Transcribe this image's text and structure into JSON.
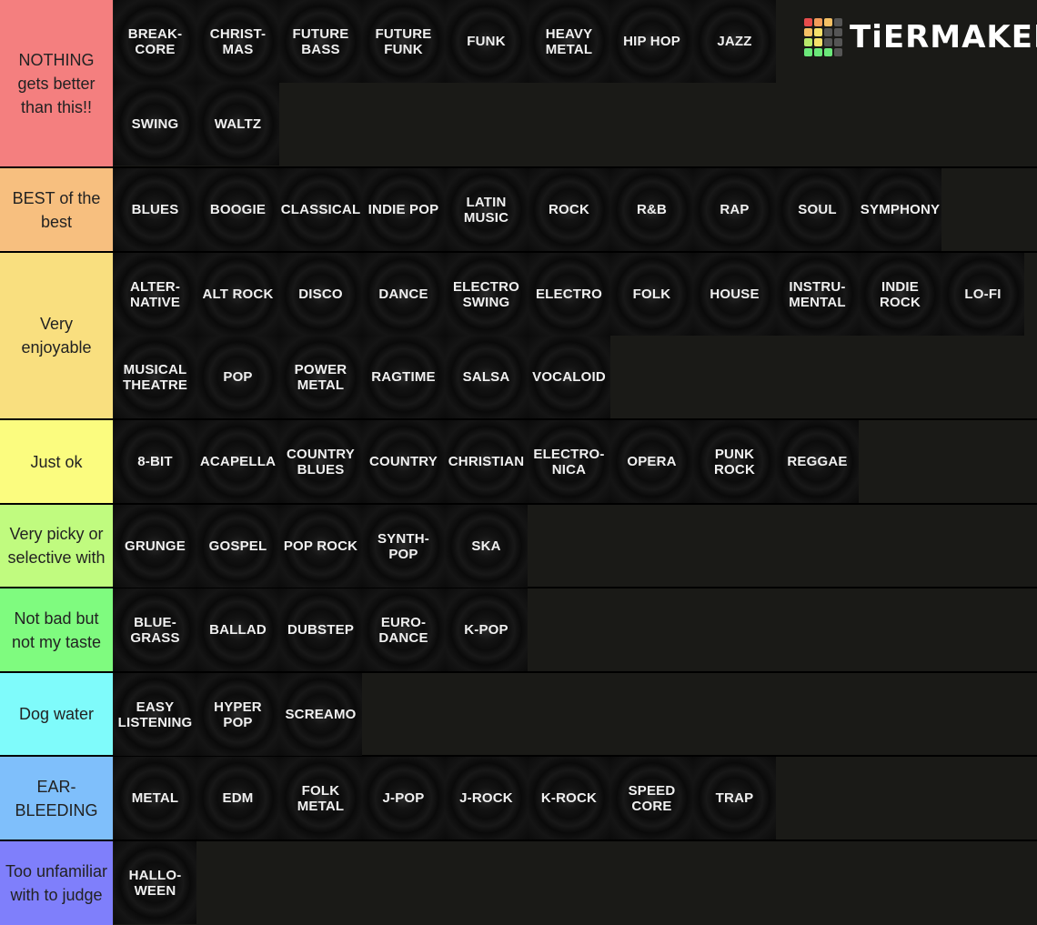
{
  "logo": {
    "text": "TiERMAKER",
    "cells": [
      "#e74c4c",
      "#f39c5a",
      "#f5c065",
      "#555555",
      "#f5c065",
      "#f5e06b",
      "#555555",
      "#555555",
      "#b8e86b",
      "#f5e06b",
      "#555555",
      "#555555",
      "#6be87a",
      "#6be87a",
      "#6be87a",
      "#555555"
    ]
  },
  "tiers": [
    {
      "label": "NOTHING gets better than this!!",
      "color": "#f47f7f",
      "items": [
        "BREAK-\nCORE",
        "CHRIST-\nMAS",
        "FUTURE\nBASS",
        "FUTURE\nFUNK",
        "FUNK",
        "HEAVY\nMETAL",
        "HIP HOP",
        "JAZZ",
        "SWING",
        "WALTZ"
      ]
    },
    {
      "label": "BEST of the best",
      "color": "#f7bf7f",
      "items": [
        "BLUES",
        "BOOGIE",
        "CLASSICAL",
        "INDIE POP",
        "LATIN\nMUSIC",
        "ROCK",
        "R&B",
        "RAP",
        "SOUL",
        "SYMPHONY"
      ]
    },
    {
      "label": "Very enjoyable",
      "color": "#f9df7f",
      "items": [
        "ALTER-\nNATIVE",
        "ALT ROCK",
        "DISCO",
        "DANCE",
        "ELECTRO\nSWING",
        "ELECTRO",
        "FOLK",
        "HOUSE",
        "INSTRU-\nMENTAL",
        "INDIE\nROCK",
        "LO-FI",
        "MUSICAL\nTHEATRE",
        "POP",
        "POWER\nMETAL",
        "RAGTIME",
        "SALSA",
        "VOCALOID"
      ]
    },
    {
      "label": "Just ok",
      "color": "#fbfc7f",
      "items": [
        "8-BIT",
        "ACAPELLA",
        "COUNTRY\nBLUES",
        "COUNTRY",
        "CHRISTIAN",
        "ELECTRO-\nNICA",
        "OPERA",
        "PUNK\nROCK",
        "REGGAE"
      ]
    },
    {
      "label": "Very picky or selective with",
      "color": "#c0fb7f",
      "items": [
        "GRUNGE",
        "GOSPEL",
        "POP ROCK",
        "SYNTH-\nPOP",
        "SKA"
      ]
    },
    {
      "label": "Not bad but not my taste",
      "color": "#7ffb7f",
      "items": [
        "BLUE-\nGRASS",
        "BALLAD",
        "DUBSTEP",
        "EURO-\nDANCE",
        "K-POP"
      ]
    },
    {
      "label": "Dog water",
      "color": "#7ffbfb",
      "items": [
        "EASY\nLISTENING",
        "HYPER\nPOP",
        "SCREAMO"
      ]
    },
    {
      "label": "EAR-BLEEDING",
      "color": "#7fbffb",
      "items": [
        "METAL",
        "EDM",
        "FOLK\nMETAL",
        "J-POP",
        "J-ROCK",
        "K-ROCK",
        "SPEED\nCORE",
        "TRAP"
      ]
    },
    {
      "label": "Too unfamiliar with to judge",
      "color": "#7f7ffb",
      "items": [
        "HALLO-\nWEEN"
      ]
    }
  ]
}
